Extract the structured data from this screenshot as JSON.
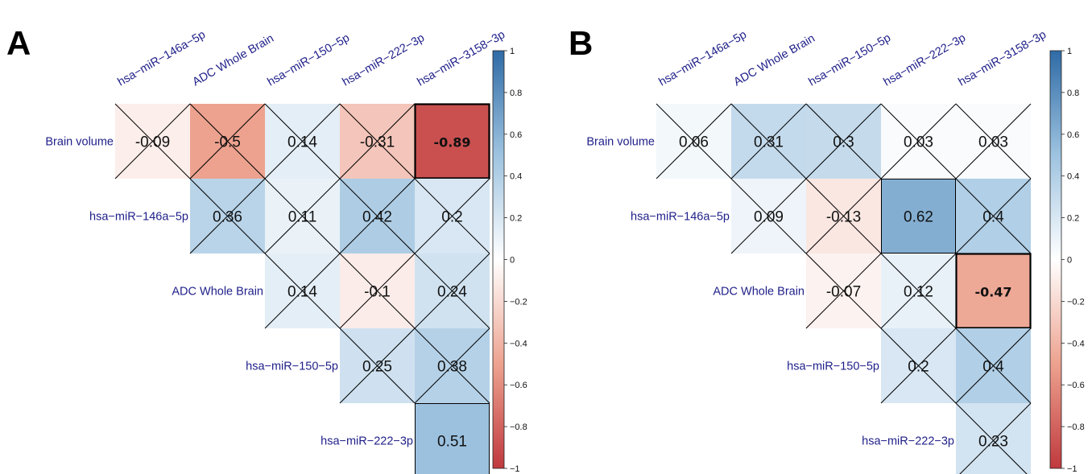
{
  "chart_data": [
    {
      "type": "heatmap",
      "panel_label": "A",
      "columns": [
        "hsa−miR−146a−5p",
        "ADC Whole Brain",
        "hsa−miR−150−5p",
        "hsa−miR−222−3p",
        "hsa−miR−3158−3p"
      ],
      "rows": [
        "Brain volume",
        "hsa−miR−146a−5p",
        "ADC Whole Brain",
        "hsa−miR−150−5p",
        "hsa−miR−222−3p"
      ],
      "cells": [
        {
          "row": 0,
          "col": 0,
          "value": -0.09,
          "text": "-0.09",
          "crossed": true,
          "bold": false
        },
        {
          "row": 0,
          "col": 1,
          "value": -0.5,
          "text": "-0.5",
          "crossed": true,
          "bold": false
        },
        {
          "row": 0,
          "col": 2,
          "value": 0.14,
          "text": "0.14",
          "crossed": true,
          "bold": false
        },
        {
          "row": 0,
          "col": 3,
          "value": -0.31,
          "text": "-0.31",
          "crossed": true,
          "bold": false
        },
        {
          "row": 0,
          "col": 4,
          "value": -0.89,
          "text": "-0.89",
          "crossed": false,
          "bold": true
        },
        {
          "row": 1,
          "col": 1,
          "value": 0.36,
          "text": "0.36",
          "crossed": true,
          "bold": false
        },
        {
          "row": 1,
          "col": 2,
          "value": 0.11,
          "text": "0.11",
          "crossed": true,
          "bold": false
        },
        {
          "row": 1,
          "col": 3,
          "value": 0.42,
          "text": "0.42",
          "crossed": true,
          "bold": false
        },
        {
          "row": 1,
          "col": 4,
          "value": 0.2,
          "text": "0.2",
          "crossed": true,
          "bold": false
        },
        {
          "row": 2,
          "col": 2,
          "value": 0.14,
          "text": "0.14",
          "crossed": true,
          "bold": false
        },
        {
          "row": 2,
          "col": 3,
          "value": -0.1,
          "text": "-0.1",
          "crossed": true,
          "bold": false
        },
        {
          "row": 2,
          "col": 4,
          "value": 0.24,
          "text": "0.24",
          "crossed": true,
          "bold": false
        },
        {
          "row": 3,
          "col": 3,
          "value": 0.25,
          "text": "0.25",
          "crossed": true,
          "bold": false
        },
        {
          "row": 3,
          "col": 4,
          "value": 0.38,
          "text": "0.38",
          "crossed": true,
          "bold": false
        },
        {
          "row": 4,
          "col": 4,
          "value": 0.51,
          "text": "0.51",
          "crossed": false,
          "bold": false
        }
      ],
      "colorbar": {
        "range": [
          -1,
          1
        ],
        "ticks": [
          "1",
          "0.8",
          "0.6",
          "0.4",
          "0.2",
          "0",
          "−0.2",
          "−0.4",
          "−0.6",
          "−0.8",
          "−1"
        ],
        "tick_values": [
          1,
          0.8,
          0.6,
          0.4,
          0.2,
          0,
          -0.2,
          -0.4,
          -0.6,
          -0.8,
          -1
        ]
      }
    },
    {
      "type": "heatmap",
      "panel_label": "B",
      "columns": [
        "hsa−miR−146a−5p",
        "ADC Whole Brain",
        "hsa−miR−150−5p",
        "hsa−miR−222−3p",
        "hsa−miR−3158−3p"
      ],
      "rows": [
        "Brain volume",
        "hsa−miR−146a−5p",
        "ADC Whole Brain",
        "hsa−miR−150−5p",
        "hsa−miR−222−3p"
      ],
      "cells": [
        {
          "row": 0,
          "col": 0,
          "value": 0.06,
          "text": "0.06",
          "crossed": true,
          "bold": false
        },
        {
          "row": 0,
          "col": 1,
          "value": 0.31,
          "text": "0.31",
          "crossed": true,
          "bold": false
        },
        {
          "row": 0,
          "col": 2,
          "value": 0.3,
          "text": "0.3",
          "crossed": true,
          "bold": false
        },
        {
          "row": 0,
          "col": 3,
          "value": 0.03,
          "text": "0.03",
          "crossed": true,
          "bold": false
        },
        {
          "row": 0,
          "col": 4,
          "value": 0.03,
          "text": "0.03",
          "crossed": true,
          "bold": false
        },
        {
          "row": 1,
          "col": 1,
          "value": 0.09,
          "text": "0.09",
          "crossed": true,
          "bold": false
        },
        {
          "row": 1,
          "col": 2,
          "value": -0.13,
          "text": "-0.13",
          "crossed": true,
          "bold": false
        },
        {
          "row": 1,
          "col": 3,
          "value": 0.62,
          "text": "0.62",
          "crossed": false,
          "bold": false
        },
        {
          "row": 1,
          "col": 4,
          "value": 0.4,
          "text": "0.4",
          "crossed": true,
          "bold": false
        },
        {
          "row": 2,
          "col": 2,
          "value": -0.07,
          "text": "-0.07",
          "crossed": true,
          "bold": false
        },
        {
          "row": 2,
          "col": 3,
          "value": 0.12,
          "text": "0.12",
          "crossed": true,
          "bold": false
        },
        {
          "row": 2,
          "col": 4,
          "value": -0.47,
          "text": "-0.47",
          "crossed": false,
          "bold": true
        },
        {
          "row": 3,
          "col": 3,
          "value": 0.2,
          "text": "0.2",
          "crossed": true,
          "bold": false
        },
        {
          "row": 3,
          "col": 4,
          "value": 0.4,
          "text": "0.4",
          "crossed": true,
          "bold": false
        },
        {
          "row": 4,
          "col": 4,
          "value": 0.23,
          "text": "0.23",
          "crossed": true,
          "bold": false
        }
      ],
      "colorbar": {
        "range": [
          -1,
          1
        ],
        "ticks": [
          "1",
          "0.8",
          "0.6",
          "0.4",
          "0.2",
          "0",
          "−0.2",
          "−0.4",
          "−0.6",
          "−0.8",
          "−1"
        ],
        "tick_values": [
          1,
          0.8,
          0.6,
          0.4,
          0.2,
          0,
          -0.2,
          -0.4,
          -0.6,
          -0.8,
          -1
        ]
      }
    }
  ],
  "colors": {
    "negative": "#b2182b",
    "neutral": "#ffffff",
    "positive": "#2166ac",
    "label_text": "#1f1f8a"
  }
}
